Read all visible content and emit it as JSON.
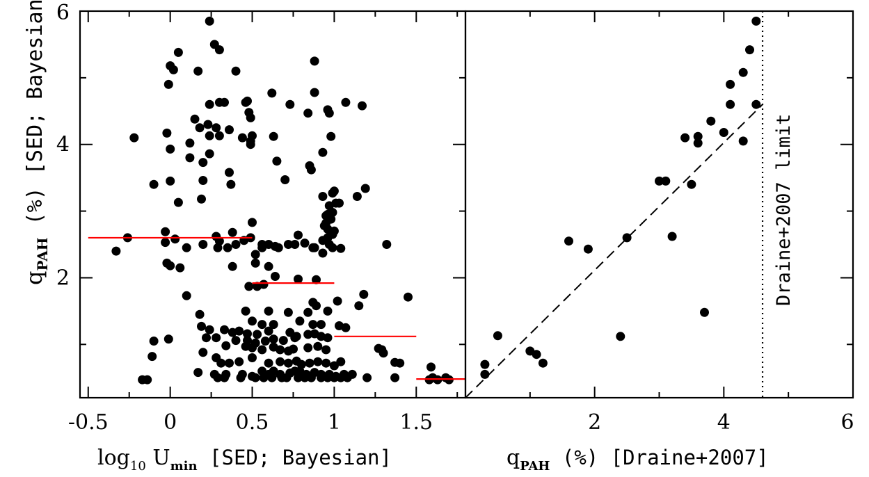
{
  "chart_data": [
    {
      "type": "scatter",
      "panel": "left",
      "xlabel_main": "log",
      "xlabel_sub": "10",
      "xlabel_main2": " U",
      "xlabel_sub2": "min",
      "xlabel_tail": " [SED; Bayesian]",
      "ylabel_main": "q",
      "ylabel_sub": "PAH",
      "ylabel_tail": " (%) [SED; Bayesian]",
      "xlim": [
        -0.55,
        1.8
      ],
      "ylim": [
        0.2,
        6.0
      ],
      "x_ticks": [
        "-0.5",
        "0",
        "0.5",
        "1",
        "1.5"
      ],
      "x_tick_values": [
        -0.5,
        0,
        0.5,
        1,
        1.5
      ],
      "y_ticks": [
        "2",
        "4",
        "6"
      ],
      "y_tick_values": [
        2,
        4,
        6
      ],
      "marker_color": "#000000",
      "points": [
        [
          0.24,
          5.85
        ],
        [
          0.27,
          5.5
        ],
        [
          0.3,
          5.42
        ],
        [
          0.05,
          5.38
        ],
        [
          0.0,
          5.18
        ],
        [
          0.02,
          5.12
        ],
        [
          -0.01,
          4.9
        ],
        [
          0.17,
          5.1
        ],
        [
          0.4,
          5.1
        ],
        [
          0.88,
          5.25
        ],
        [
          0.88,
          4.78
        ],
        [
          0.62,
          4.77
        ],
        [
          0.3,
          4.63
        ],
        [
          0.33,
          4.63
        ],
        [
          0.47,
          4.65
        ],
        [
          0.46,
          4.63
        ],
        [
          0.24,
          4.6
        ],
        [
          0.73,
          4.6
        ],
        [
          1.07,
          4.63
        ],
        [
          1.17,
          4.58
        ],
        [
          0.96,
          4.52
        ],
        [
          0.48,
          4.48
        ],
        [
          0.97,
          4.47
        ],
        [
          0.84,
          4.47
        ],
        [
          0.49,
          4.4
        ],
        [
          0.15,
          4.38
        ],
        [
          0.18,
          4.25
        ],
        [
          0.23,
          4.3
        ],
        [
          0.28,
          4.25
        ],
        [
          0.36,
          4.22
        ],
        [
          0.24,
          4.13
        ],
        [
          0.3,
          4.13
        ],
        [
          0.44,
          4.1
        ],
        [
          0.5,
          4.13
        ],
        [
          0.63,
          4.12
        ],
        [
          0.49,
          4.05
        ],
        [
          0.49,
          4.0
        ],
        [
          -0.22,
          4.1
        ],
        [
          -0.02,
          4.17
        ],
        [
          0.0,
          3.93
        ],
        [
          0.12,
          4.02
        ],
        [
          0.98,
          4.12
        ],
        [
          0.93,
          3.88
        ],
        [
          0.24,
          3.86
        ],
        [
          0.2,
          3.73
        ],
        [
          0.12,
          3.8
        ],
        [
          0.65,
          3.75
        ],
        [
          0.85,
          3.68
        ],
        [
          0.86,
          3.62
        ],
        [
          0.36,
          3.58
        ],
        [
          0.37,
          3.4
        ],
        [
          0.0,
          3.45
        ],
        [
          -0.1,
          3.4
        ],
        [
          0.2,
          3.46
        ],
        [
          0.7,
          3.47
        ],
        [
          0.05,
          3.13
        ],
        [
          0.19,
          3.18
        ],
        [
          0.93,
          3.22
        ],
        [
          0.99,
          3.27
        ],
        [
          1.0,
          3.3
        ],
        [
          1.19,
          3.34
        ],
        [
          1.14,
          3.22
        ],
        [
          1.01,
          3.12
        ],
        [
          1.03,
          3.12
        ],
        [
          0.97,
          3.08
        ],
        [
          0.99,
          2.98
        ],
        [
          0.96,
          2.95
        ],
        [
          0.95,
          2.93
        ],
        [
          0.98,
          2.88
        ],
        [
          0.95,
          2.82
        ],
        [
          0.94,
          2.78
        ],
        [
          0.96,
          2.73
        ],
        [
          1.0,
          2.7
        ],
        [
          0.99,
          2.65
        ],
        [
          0.96,
          2.6
        ],
        [
          0.93,
          2.56
        ],
        [
          0.97,
          2.5
        ],
        [
          0.99,
          2.45
        ],
        [
          0.93,
          2.37
        ],
        [
          1.04,
          2.44
        ],
        [
          1.32,
          2.5
        ],
        [
          0.5,
          2.83
        ],
        [
          0.38,
          2.68
        ],
        [
          0.28,
          2.62
        ],
        [
          0.3,
          2.55
        ],
        [
          -0.26,
          2.6
        ],
        [
          -0.03,
          2.69
        ],
        [
          0.03,
          2.58
        ],
        [
          -0.03,
          2.53
        ],
        [
          0.1,
          2.45
        ],
        [
          0.2,
          2.5
        ],
        [
          0.29,
          2.45
        ],
        [
          0.35,
          2.45
        ],
        [
          0.4,
          2.5
        ],
        [
          0.45,
          2.56
        ],
        [
          0.49,
          2.6
        ],
        [
          0.56,
          2.5
        ],
        [
          0.6,
          2.5
        ],
        [
          0.64,
          2.47
        ],
        [
          0.66,
          2.45
        ],
        [
          0.72,
          2.5
        ],
        [
          0.76,
          2.5
        ],
        [
          0.78,
          2.64
        ],
        [
          0.82,
          2.52
        ],
        [
          0.87,
          2.45
        ],
        [
          0.88,
          2.45
        ],
        [
          0.56,
          2.45
        ],
        [
          0.52,
          2.35
        ],
        [
          -0.33,
          2.4
        ],
        [
          0.38,
          2.17
        ],
        [
          0.52,
          2.22
        ],
        [
          0.6,
          2.17
        ],
        [
          0.64,
          2.02
        ],
        [
          0.78,
          1.98
        ],
        [
          -0.02,
          2.22
        ],
        [
          0.0,
          2.18
        ],
        [
          0.06,
          2.15
        ],
        [
          0.48,
          1.87
        ],
        [
          0.53,
          1.87
        ],
        [
          0.57,
          1.9
        ],
        [
          0.89,
          1.97
        ],
        [
          0.1,
          1.73
        ],
        [
          0.87,
          1.63
        ],
        [
          0.89,
          1.58
        ],
        [
          1.02,
          1.65
        ],
        [
          1.15,
          1.58
        ],
        [
          1.18,
          1.75
        ],
        [
          1.45,
          1.71
        ],
        [
          0.46,
          1.5
        ],
        [
          0.6,
          1.5
        ],
        [
          0.72,
          1.48
        ],
        [
          0.84,
          1.48
        ],
        [
          0.96,
          1.5
        ],
        [
          0.18,
          1.45
        ],
        [
          0.5,
          1.35
        ],
        [
          0.56,
          1.3
        ],
        [
          0.63,
          1.3
        ],
        [
          0.79,
          1.35
        ],
        [
          0.87,
          1.3
        ],
        [
          0.92,
          1.3
        ],
        [
          1.03,
          1.28
        ],
        [
          1.07,
          1.25
        ],
        [
          0.19,
          1.27
        ],
        [
          0.24,
          1.22
        ],
        [
          0.33,
          1.22
        ],
        [
          0.38,
          1.18
        ],
        [
          0.42,
          1.2
        ],
        [
          0.47,
          1.16
        ],
        [
          0.53,
          1.15
        ],
        [
          0.6,
          1.2
        ],
        [
          0.73,
          1.18
        ],
        [
          0.77,
          1.12
        ],
        [
          0.84,
          1.15
        ],
        [
          0.88,
          1.16
        ],
        [
          0.92,
          1.12
        ],
        [
          0.96,
          1.1
        ],
        [
          0.22,
          1.1
        ],
        [
          0.28,
          1.1
        ],
        [
          0.4,
          1.06
        ],
        [
          0.47,
          1.06
        ],
        [
          0.52,
          1.02
        ],
        [
          0.58,
          1.05
        ],
        [
          0.63,
          1.08
        ],
        [
          0.69,
          1.06
        ],
        [
          0.76,
          1.1
        ],
        [
          -0.1,
          1.05
        ],
        [
          -0.01,
          1.08
        ],
        [
          0.34,
          0.98
        ],
        [
          0.46,
          0.97
        ],
        [
          0.5,
          0.95
        ],
        [
          0.56,
          0.92
        ],
        [
          0.63,
          0.96
        ],
        [
          0.67,
          0.92
        ],
        [
          0.72,
          0.9
        ],
        [
          0.75,
          0.93
        ],
        [
          0.84,
          0.95
        ],
        [
          0.9,
          0.97
        ],
        [
          0.95,
          0.92
        ],
        [
          1.27,
          0.94
        ],
        [
          1.29,
          0.92
        ],
        [
          1.3,
          0.87
        ],
        [
          1.37,
          0.73
        ],
        [
          1.4,
          0.72
        ],
        [
          -0.11,
          0.82
        ],
        [
          0.2,
          0.88
        ],
        [
          0.28,
          0.8
        ],
        [
          0.31,
          0.72
        ],
        [
          0.36,
          0.72
        ],
        [
          0.42,
          0.74
        ],
        [
          0.5,
          0.8
        ],
        [
          0.6,
          0.72
        ],
        [
          0.67,
          0.74
        ],
        [
          0.72,
          0.72
        ],
        [
          0.77,
          0.75
        ],
        [
          0.8,
          0.7
        ],
        [
          0.85,
          0.72
        ],
        [
          0.9,
          0.74
        ],
        [
          0.95,
          0.72
        ],
        [
          1.0,
          0.68
        ],
        [
          1.04,
          0.74
        ],
        [
          0.17,
          0.58
        ],
        [
          0.27,
          0.55
        ],
        [
          0.34,
          0.55
        ],
        [
          0.44,
          0.55
        ],
        [
          0.5,
          0.52
        ],
        [
          0.56,
          0.6
        ],
        [
          0.6,
          0.55
        ],
        [
          0.63,
          0.6
        ],
        [
          0.67,
          0.55
        ],
        [
          0.73,
          0.57
        ],
        [
          0.76,
          0.6
        ],
        [
          0.79,
          0.6
        ],
        [
          0.83,
          0.55
        ],
        [
          0.88,
          0.58
        ],
        [
          0.92,
          0.55
        ],
        [
          0.97,
          0.55
        ],
        [
          1.01,
          0.52
        ],
        [
          1.06,
          0.55
        ],
        [
          1.11,
          0.55
        ],
        [
          0.29,
          0.5
        ],
        [
          0.33,
          0.5
        ],
        [
          0.43,
          0.5
        ],
        [
          0.52,
          0.5
        ],
        [
          0.57,
          0.5
        ],
        [
          0.62,
          0.5
        ],
        [
          0.68,
          0.5
        ],
        [
          0.71,
          0.5
        ],
        [
          0.78,
          0.5
        ],
        [
          0.82,
          0.5
        ],
        [
          0.86,
          0.5
        ],
        [
          0.92,
          0.5
        ],
        [
          0.96,
          0.5
        ],
        [
          1.0,
          0.5
        ],
        [
          1.04,
          0.5
        ],
        [
          1.08,
          0.5
        ],
        [
          1.2,
          0.5
        ],
        [
          -0.17,
          0.47
        ],
        [
          -0.14,
          0.47
        ],
        [
          1.37,
          0.5
        ],
        [
          1.58,
          0.47
        ],
        [
          1.6,
          0.5
        ],
        [
          1.63,
          0.47
        ],
        [
          1.7,
          0.47
        ],
        [
          1.68,
          0.5
        ],
        [
          1.59,
          0.66
        ]
      ],
      "segments_color": "#ff0000",
      "segments": [
        {
          "x": [
            -0.5,
            0.5
          ],
          "y": 2.6
        },
        {
          "x": [
            0.5,
            1.0
          ],
          "y": 1.92
        },
        {
          "x": [
            1.0,
            1.5
          ],
          "y": 1.12
        },
        {
          "x": [
            1.5,
            1.8
          ],
          "y": 0.48
        }
      ]
    },
    {
      "type": "scatter",
      "panel": "right",
      "xlabel_main": "q",
      "xlabel_sub": "PAH",
      "xlabel_tail": " (%) [Draine+2007]",
      "xlim": [
        0,
        6
      ],
      "ylim": [
        0.2,
        6.0
      ],
      "x_ticks": [
        "2",
        "4",
        "6"
      ],
      "x_tick_values": [
        2,
        4,
        6
      ],
      "marker_color": "#000000",
      "points": [
        [
          4.5,
          5.85
        ],
        [
          4.4,
          5.42
        ],
        [
          4.3,
          5.08
        ],
        [
          4.1,
          4.9
        ],
        [
          4.1,
          4.6
        ],
        [
          4.5,
          4.6
        ],
        [
          3.8,
          4.35
        ],
        [
          4.0,
          4.18
        ],
        [
          3.6,
          4.12
        ],
        [
          3.4,
          4.1
        ],
        [
          4.3,
          4.05
        ],
        [
          3.6,
          4.02
        ],
        [
          3.0,
          3.45
        ],
        [
          3.1,
          3.45
        ],
        [
          3.5,
          3.4
        ],
        [
          2.5,
          2.6
        ],
        [
          3.2,
          2.62
        ],
        [
          1.6,
          2.55
        ],
        [
          1.9,
          2.43
        ],
        [
          3.7,
          1.48
        ],
        [
          2.4,
          1.12
        ],
        [
          0.5,
          1.13
        ],
        [
          1.0,
          0.9
        ],
        [
          1.1,
          0.85
        ],
        [
          1.2,
          0.72
        ],
        [
          0.3,
          0.7
        ],
        [
          0.3,
          0.55
        ]
      ],
      "one_to_one_line": {
        "x": [
          0,
          4.6
        ],
        "y": [
          0,
          4.6
        ]
      },
      "limit_line_x": 4.6,
      "limit_label": "Draine+2007 limit"
    }
  ]
}
